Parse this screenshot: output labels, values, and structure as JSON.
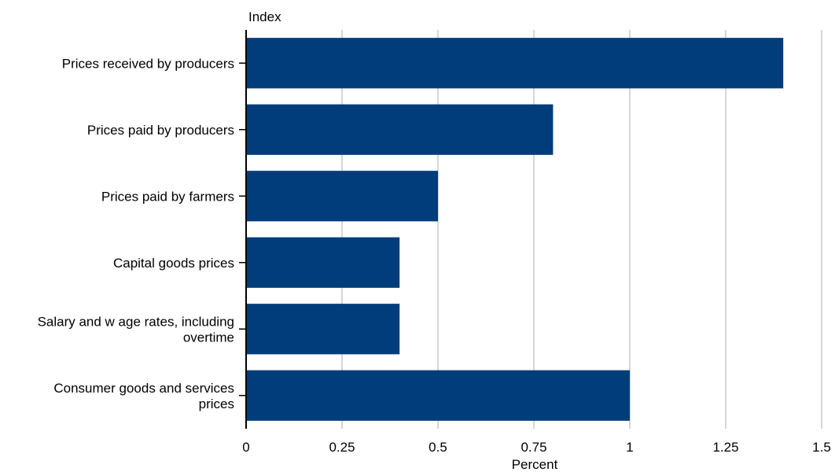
{
  "chart_data": {
    "type": "bar",
    "orientation": "horizontal",
    "title": "",
    "ylabel": "Index",
    "xlabel": "Percent",
    "categories": [
      "Prices received by producers",
      "Prices paid by producers",
      "Prices paid by farmers",
      "Capital goods prices",
      "Salary and w age rates, including overtime",
      "Consumer goods and services prices"
    ],
    "category_lines": [
      [
        "Prices received by producers"
      ],
      [
        "Prices paid by producers"
      ],
      [
        "Prices paid by farmers"
      ],
      [
        "Capital goods prices"
      ],
      [
        "Salary and w age rates, including",
        "overtime"
      ],
      [
        "Consumer goods and services",
        "prices"
      ]
    ],
    "values": [
      1.4,
      0.8,
      0.5,
      0.4,
      0.4,
      1.0
    ],
    "xlim": [
      0,
      1.5
    ],
    "xticks": [
      0,
      0.25,
      0.5,
      0.75,
      1,
      1.25,
      1.5
    ],
    "xtick_labels": [
      "0",
      "0.25",
      "0.5",
      "0.75",
      "1",
      "1.25",
      "1.5"
    ],
    "grid": "vertical",
    "bar_color": "#003d7a",
    "grid_color": "#c8c8c8",
    "axis_color": "#000000"
  }
}
